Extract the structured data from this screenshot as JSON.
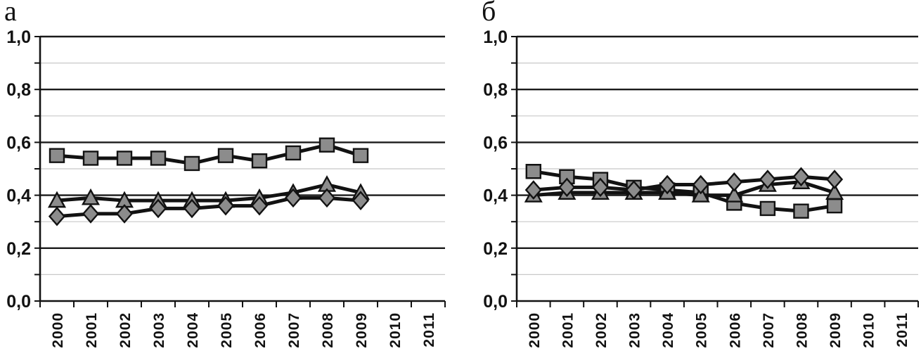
{
  "colors": {
    "background": "#ffffff",
    "text": "#121212",
    "axis": "#121212",
    "major_grid": "#1a1a1a",
    "minor_grid": "#c8c8c8",
    "series_line": "#121212",
    "marker_fill": "#8C8C8C",
    "marker_stroke": "#121212"
  },
  "chart_data": [
    {
      "type": "line",
      "title": "а",
      "xlabel": "",
      "ylabel": "",
      "ylim": [
        0.0,
        1.0
      ],
      "ytick_values": [
        0.0,
        0.2,
        0.4,
        0.6,
        0.8,
        1.0
      ],
      "ytick_labels": [
        "0,0",
        "0,2",
        "0,4",
        "0,6",
        "0,8",
        "1,0"
      ],
      "minor_grid_values": [
        0.1,
        0.3,
        0.5,
        0.7,
        0.9
      ],
      "grid": "major-black, minor-light-gray",
      "legend_position": "none",
      "categories": [
        "2000",
        "2001",
        "2002",
        "2003",
        "2004",
        "2005",
        "2006",
        "2007",
        "2008",
        "2009",
        "2010",
        "2011"
      ],
      "series": [
        {
          "name": "square-series",
          "marker": "square",
          "values": [
            0.55,
            0.54,
            0.54,
            0.54,
            0.52,
            0.55,
            0.53,
            0.56,
            0.59,
            0.55,
            null,
            null
          ]
        },
        {
          "name": "triangle-series",
          "marker": "triangle",
          "values": [
            0.38,
            0.39,
            0.38,
            0.38,
            0.38,
            0.38,
            0.39,
            0.41,
            0.44,
            0.41,
            null,
            null
          ]
        },
        {
          "name": "diamond-series",
          "marker": "diamond",
          "values": [
            0.32,
            0.33,
            0.33,
            0.35,
            0.35,
            0.36,
            0.36,
            0.39,
            0.39,
            0.38,
            null,
            null
          ]
        }
      ]
    },
    {
      "type": "line",
      "title": "б",
      "xlabel": "",
      "ylabel": "",
      "ylim": [
        0.0,
        1.0
      ],
      "ytick_values": [
        0.0,
        0.2,
        0.4,
        0.6,
        0.8,
        1.0
      ],
      "ytick_labels": [
        "0,0",
        "0,2",
        "0,4",
        "0,6",
        "0,8",
        "1,0"
      ],
      "minor_grid_values": [
        0.1,
        0.3,
        0.5,
        0.7,
        0.9
      ],
      "grid": "major-black, minor-light-gray",
      "legend_position": "none",
      "categories": [
        "2000",
        "2001",
        "2002",
        "2003",
        "2004",
        "2005",
        "2006",
        "2007",
        "2008",
        "2009",
        "2010",
        "2011"
      ],
      "series": [
        {
          "name": "square-series",
          "marker": "square",
          "values": [
            0.49,
            0.47,
            0.46,
            0.43,
            0.42,
            0.41,
            0.37,
            0.35,
            0.34,
            0.36,
            null,
            null
          ]
        },
        {
          "name": "triangle-series",
          "marker": "triangle",
          "values": [
            0.4,
            0.41,
            0.41,
            0.41,
            0.41,
            0.4,
            0.4,
            0.44,
            0.45,
            0.41,
            null,
            null
          ]
        },
        {
          "name": "diamond-series",
          "marker": "diamond",
          "values": [
            0.42,
            0.43,
            0.43,
            0.42,
            0.44,
            0.44,
            0.45,
            0.46,
            0.47,
            0.46,
            null,
            null
          ]
        }
      ]
    }
  ]
}
